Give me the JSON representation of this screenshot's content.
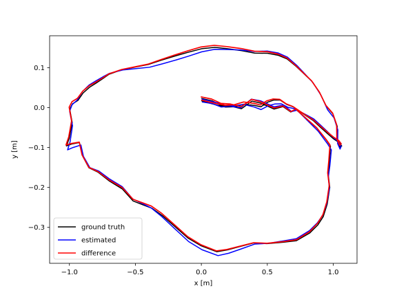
{
  "chart_data": {
    "type": "line",
    "title": "",
    "xlabel": "x [m]",
    "ylabel": "y [m]",
    "xlim": [
      -1.15,
      1.18
    ],
    "ylim": [
      -0.39,
      0.18
    ],
    "xticks": [
      -1.0,
      -0.5,
      0.0,
      0.5,
      1.0
    ],
    "xtick_labels": [
      "−1.0",
      "−0.5",
      "0.0",
      "0.5",
      "1.0"
    ],
    "yticks": [
      -0.3,
      -0.2,
      -0.1,
      0.0,
      0.1
    ],
    "ytick_labels": [
      "−0.3",
      "−0.2",
      "−0.1",
      "0.0",
      "0.1"
    ],
    "grid": false,
    "legend_position": "lower-left",
    "path": [
      [
        0.0,
        0.02
      ],
      [
        0.08,
        0.015
      ],
      [
        0.15,
        0.005
      ],
      [
        0.22,
        0.005
      ],
      [
        0.3,
        0.0
      ],
      [
        0.38,
        0.02
      ],
      [
        0.45,
        0.015
      ],
      [
        0.55,
        0.0
      ],
      [
        0.62,
        0.005
      ],
      [
        0.68,
        -0.01
      ],
      [
        0.72,
        -0.005
      ],
      [
        0.8,
        -0.03
      ],
      [
        0.88,
        -0.055
      ],
      [
        0.95,
        -0.085
      ],
      [
        0.98,
        -0.1
      ],
      [
        0.97,
        -0.14
      ],
      [
        0.96,
        -0.17
      ],
      [
        0.97,
        -0.2
      ],
      [
        0.95,
        -0.24
      ],
      [
        0.92,
        -0.27
      ],
      [
        0.88,
        -0.29
      ],
      [
        0.82,
        -0.31
      ],
      [
        0.72,
        -0.33
      ],
      [
        0.62,
        -0.335
      ],
      [
        0.5,
        -0.34
      ],
      [
        0.4,
        -0.34
      ],
      [
        0.3,
        -0.35
      ],
      [
        0.2,
        -0.36
      ],
      [
        0.12,
        -0.365
      ],
      [
        0.0,
        -0.35
      ],
      [
        -0.1,
        -0.33
      ],
      [
        -0.2,
        -0.3
      ],
      [
        -0.3,
        -0.27
      ],
      [
        -0.38,
        -0.25
      ],
      [
        -0.45,
        -0.24
      ],
      [
        -0.52,
        -0.23
      ],
      [
        -0.6,
        -0.2
      ],
      [
        -0.7,
        -0.18
      ],
      [
        -0.78,
        -0.16
      ],
      [
        -0.85,
        -0.15
      ],
      [
        -0.9,
        -0.12
      ],
      [
        -0.92,
        -0.09
      ],
      [
        -0.98,
        -0.095
      ],
      [
        -1.02,
        -0.1
      ],
      [
        -1.0,
        -0.08
      ],
      [
        -0.98,
        -0.04
      ],
      [
        -1.0,
        -0.005
      ],
      [
        -0.98,
        0.01
      ],
      [
        -0.94,
        0.02
      ],
      [
        -0.9,
        0.04
      ],
      [
        -0.85,
        0.055
      ],
      [
        -0.8,
        0.065
      ],
      [
        -0.75,
        0.075
      ],
      [
        -0.7,
        0.085
      ],
      [
        -0.6,
        0.095
      ],
      [
        -0.5,
        0.1
      ],
      [
        -0.4,
        0.105
      ],
      [
        -0.3,
        0.115
      ],
      [
        -0.2,
        0.125
      ],
      [
        -0.1,
        0.135
      ],
      [
        0.0,
        0.145
      ],
      [
        0.1,
        0.15
      ],
      [
        0.2,
        0.148
      ],
      [
        0.3,
        0.145
      ],
      [
        0.4,
        0.14
      ],
      [
        0.5,
        0.14
      ],
      [
        0.58,
        0.135
      ],
      [
        0.65,
        0.125
      ],
      [
        0.72,
        0.105
      ],
      [
        0.78,
        0.085
      ],
      [
        0.84,
        0.065
      ],
      [
        0.9,
        0.035
      ],
      [
        0.95,
        0.0
      ],
      [
        1.0,
        -0.02
      ],
      [
        1.03,
        -0.05
      ],
      [
        1.03,
        -0.085
      ],
      [
        1.05,
        -0.1
      ],
      [
        1.06,
        -0.095
      ],
      [
        1.04,
        -0.085
      ],
      [
        1.0,
        -0.075
      ],
      [
        0.95,
        -0.06
      ],
      [
        0.9,
        -0.045
      ],
      [
        0.85,
        -0.03
      ],
      [
        0.8,
        -0.02
      ],
      [
        0.75,
        -0.01
      ],
      [
        0.7,
        0.0
      ],
      [
        0.65,
        0.005
      ],
      [
        0.6,
        0.015
      ],
      [
        0.55,
        0.015
      ],
      [
        0.5,
        0.01
      ],
      [
        0.45,
        0.0
      ],
      [
        0.4,
        0.005
      ],
      [
        0.32,
        0.01
      ],
      [
        0.25,
        0.005
      ],
      [
        0.18,
        0.005
      ],
      [
        0.12,
        0.01
      ],
      [
        0.06,
        0.015
      ],
      [
        0.0,
        0.02
      ]
    ],
    "series": [
      {
        "name": "ground truth",
        "color": "#000000"
      },
      {
        "name": "estimated",
        "color": "#0000ff"
      },
      {
        "name": "difference",
        "color": "#ff0000"
      }
    ]
  }
}
